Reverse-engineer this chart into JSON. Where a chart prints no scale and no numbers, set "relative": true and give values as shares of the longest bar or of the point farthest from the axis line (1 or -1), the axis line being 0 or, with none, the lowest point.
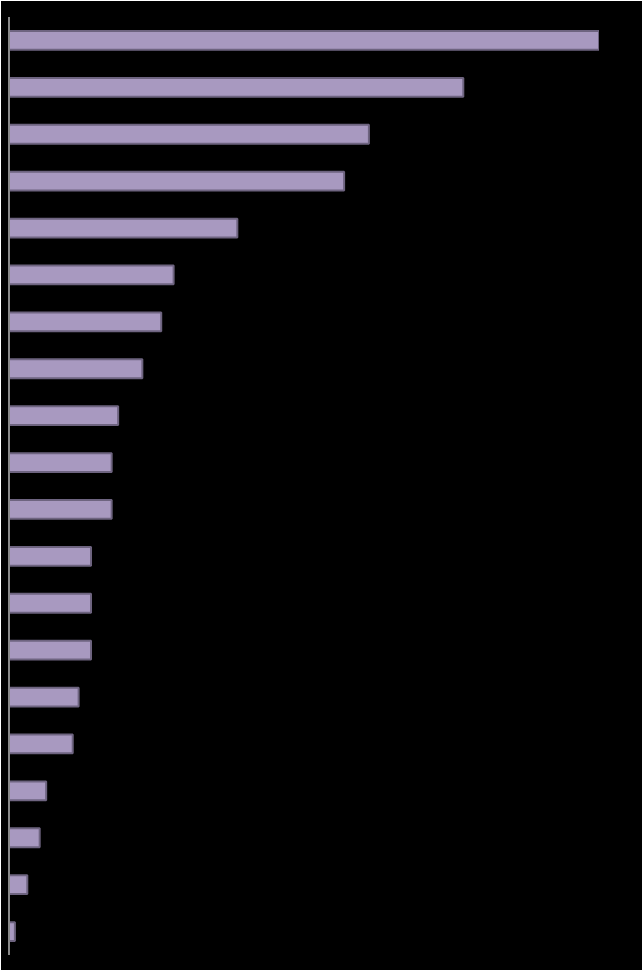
{
  "chart_data": {
    "type": "bar",
    "orientation": "horizontal",
    "relative": true,
    "categories": [
      null,
      null,
      null,
      null,
      null,
      null,
      null,
      null,
      null,
      null,
      null,
      null,
      null,
      null,
      null,
      null,
      null,
      null,
      null,
      null
    ],
    "values": [
      1,
      0.77,
      0.61,
      0.568,
      0.387,
      0.279,
      0.258,
      0.226,
      0.185,
      0.174,
      0.174,
      0.139,
      0.139,
      0.139,
      0.118,
      0.108,
      0.063,
      0.052,
      0.031,
      0.01
    ],
    "color": "#a899c0",
    "grid": false
  }
}
